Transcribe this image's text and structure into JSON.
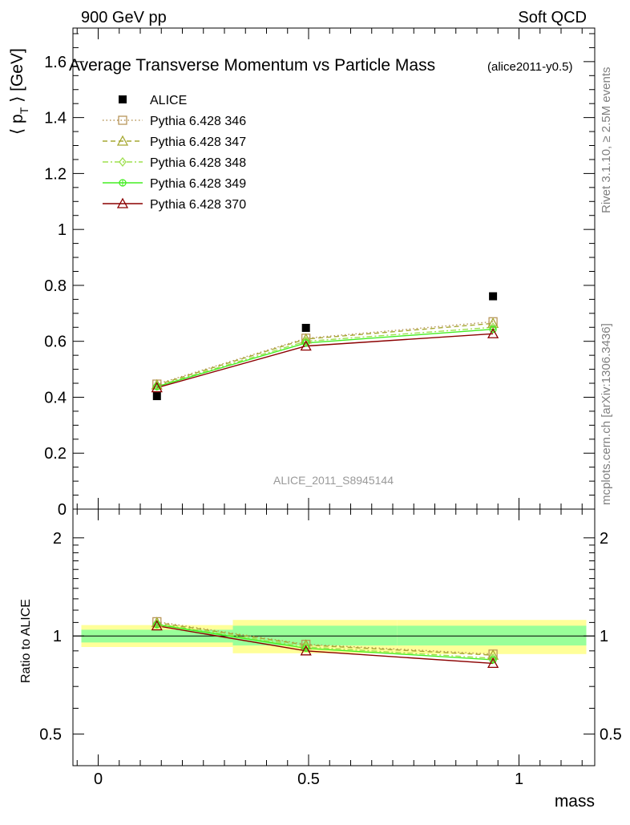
{
  "header": {
    "left": "900 GeV pp",
    "right": "Soft QCD"
  },
  "side": {
    "rivet": "Rivet 3.1.10, ≥ 2.5M events",
    "mcplots": "mcplots.cern.ch [arXiv:1306.3436]"
  },
  "chart_data": [
    {
      "type": "scatter",
      "title": "Average Transverse Momentum vs Particle Mass",
      "subtitle": "(alice2011-y0.5)",
      "watermark": "ALICE_2011_S8945144",
      "ylabel": "⟨ p_T ⟩ [GeV]",
      "ylabel_main": "⟨ p",
      "ylabel_sub": "T",
      "ylabel_tail": " ⟩ [GeV]",
      "xlim": [
        -0.06,
        1.18
      ],
      "ylim": [
        0,
        1.72
      ],
      "yticks": [
        0,
        0.2,
        0.4,
        0.6,
        0.8,
        1,
        1.2,
        1.4,
        1.6
      ],
      "ytick_labels": [
        "0",
        "0.2",
        "0.4",
        "0.6",
        "0.8",
        "1",
        "1.2",
        "1.4",
        "1.6"
      ],
      "x": [
        0.1396,
        0.4937,
        0.9383
      ],
      "series": [
        {
          "name": "ALICE",
          "color": "#000000",
          "marker": "filled-square",
          "line": "none",
          "values": [
            0.404,
            0.648,
            0.761
          ]
        },
        {
          "name": "Pythia 6.428 346",
          "color": "#b8965a",
          "marker": "open-square",
          "line": "dotted",
          "values": [
            0.447,
            0.611,
            0.67
          ]
        },
        {
          "name": "Pythia 6.428 347",
          "color": "#a6a832",
          "marker": "open-triangle",
          "line": "dashed",
          "values": [
            0.444,
            0.608,
            0.664
          ]
        },
        {
          "name": "Pythia 6.428 348",
          "color": "#9ee04e",
          "marker": "open-diamond",
          "line": "dashdot",
          "values": [
            0.44,
            0.6,
            0.65
          ]
        },
        {
          "name": "Pythia 6.428 349",
          "color": "#44ee22",
          "marker": "open-circle-cross",
          "line": "solid",
          "values": [
            0.438,
            0.594,
            0.643
          ]
        },
        {
          "name": "Pythia 6.428 370",
          "color": "#8b0000",
          "marker": "open-triangle",
          "line": "solid",
          "values": [
            0.434,
            0.583,
            0.627
          ]
        }
      ]
    },
    {
      "type": "scatter",
      "xlabel": "mass",
      "ylabel": "Ratio to ALICE",
      "xlim": [
        -0.06,
        1.18
      ],
      "ylim": [
        0.4,
        2.45
      ],
      "scale": "log",
      "yticks": [
        0.5,
        1,
        2
      ],
      "ytick_labels": [
        "0.5",
        "1",
        "2"
      ],
      "xticks": [
        0,
        0.5,
        1
      ],
      "xtick_labels": [
        "0",
        "0.5",
        "1"
      ],
      "x": [
        0.1396,
        0.4937,
        0.9383
      ],
      "bands": [
        {
          "x_from": -0.04,
          "x_to": 0.32,
          "yellow": [
            0.925,
            1.08
          ],
          "green": [
            0.955,
            1.045
          ]
        },
        {
          "x_from": 0.32,
          "x_to": 0.71,
          "yellow": [
            0.885,
            1.12
          ],
          "green": [
            0.935,
            1.075
          ]
        },
        {
          "x_from": 0.71,
          "x_to": 1.16,
          "yellow": [
            0.88,
            1.12
          ],
          "green": [
            0.935,
            1.075
          ]
        }
      ],
      "series": [
        {
          "name": "Pythia 6.428 346",
          "values": [
            1.106,
            0.943,
            0.88
          ]
        },
        {
          "name": "Pythia 6.428 347",
          "values": [
            1.099,
            0.938,
            0.873
          ]
        },
        {
          "name": "Pythia 6.428 348",
          "values": [
            1.089,
            0.926,
            0.854
          ]
        },
        {
          "name": "Pythia 6.428 349",
          "values": [
            1.084,
            0.917,
            0.845
          ]
        },
        {
          "name": "Pythia 6.428 370",
          "values": [
            1.074,
            0.9,
            0.824
          ]
        }
      ]
    }
  ]
}
